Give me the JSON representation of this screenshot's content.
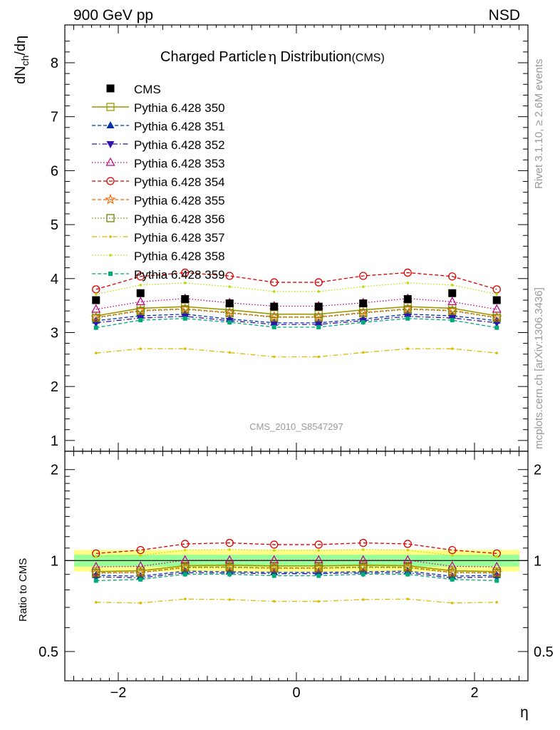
{
  "header": {
    "left": "900 GeV pp",
    "right": "NSD"
  },
  "side_labels": {
    "rivet": "Rivet 3.1.10, ≥ 2.6M events",
    "mcplots": "mcplots.cern.ch [arXiv:1306.3436]"
  },
  "chart_data": {
    "type": "line",
    "title_main": "Charged Particle",
    "title_eta": "η",
    "title_rest": " Distribution",
    "title_suffix": "(CMS)",
    "watermark": "CMS_2010_S8547297",
    "ylabel_main": {
      "d": "dN",
      "sub": "ch",
      "rest": "/dη"
    },
    "ylabel_ratio": "Ratio to CMS",
    "xlabel": "η",
    "xlim": [
      -2.6,
      2.6
    ],
    "ylim_main": [
      0.8,
      8.7
    ],
    "ylim_ratio": [
      0.4,
      2.3
    ],
    "ratio_log_scale": true,
    "x_ticks": [
      "−2",
      "0",
      "2"
    ],
    "x_tick_values": [
      -2,
      0,
      2
    ],
    "y_ticks_main": [
      "1",
      "2",
      "3",
      "4",
      "5",
      "6",
      "7",
      "8"
    ],
    "y_ticks_ratio": [
      "0.5",
      "1",
      "2"
    ],
    "x": [
      -2.25,
      -1.75,
      -1.25,
      -0.75,
      -0.25,
      0.25,
      0.75,
      1.25,
      1.75,
      2.25
    ],
    "data": {
      "name": "CMS",
      "color": "#000000",
      "values": [
        3.6,
        3.73,
        3.62,
        3.54,
        3.48,
        3.48,
        3.54,
        3.62,
        3.73,
        3.6
      ]
    },
    "series": [
      {
        "name": "Pythia 6.428 350",
        "color": "#999900",
        "marker": "open-square",
        "dash": "solid",
        "values": [
          3.31,
          3.45,
          3.48,
          3.42,
          3.34,
          3.34,
          3.42,
          3.48,
          3.45,
          3.31
        ]
      },
      {
        "name": "Pythia 6.428 351",
        "color": "#0033aa",
        "marker": "triangle-up",
        "dash": "dashed",
        "values": [
          3.22,
          3.31,
          3.34,
          3.25,
          3.18,
          3.18,
          3.25,
          3.34,
          3.31,
          3.22
        ]
      },
      {
        "name": "Pythia 6.428 352",
        "color": "#3311aa",
        "marker": "triangle-down",
        "dash": "dashdot",
        "values": [
          3.18,
          3.27,
          3.3,
          3.22,
          3.15,
          3.15,
          3.22,
          3.3,
          3.27,
          3.18
        ]
      },
      {
        "name": "Pythia 6.428 353",
        "color": "#bb0088",
        "marker": "open-triangle",
        "dash": "dotted",
        "values": [
          3.43,
          3.57,
          3.63,
          3.55,
          3.49,
          3.49,
          3.55,
          3.63,
          3.57,
          3.43
        ]
      },
      {
        "name": "Pythia 6.428 354",
        "color": "#dd0000",
        "marker": "open-circle",
        "dash": "dashed",
        "values": [
          3.8,
          4.04,
          4.11,
          4.05,
          3.93,
          3.93,
          4.05,
          4.11,
          4.04,
          3.8
        ]
      },
      {
        "name": "Pythia 6.428 355",
        "color": "#ee6600",
        "marker": "open-star",
        "dash": "dashed",
        "values": [
          3.28,
          3.41,
          3.44,
          3.37,
          3.29,
          3.29,
          3.37,
          3.44,
          3.41,
          3.28
        ]
      },
      {
        "name": "Pythia 6.428 356",
        "color": "#668800",
        "marker": "open-square",
        "dash": "dotted",
        "values": [
          3.27,
          3.4,
          3.43,
          3.36,
          3.28,
          3.28,
          3.36,
          3.43,
          3.4,
          3.27
        ]
      },
      {
        "name": "Pythia 6.428 357",
        "color": "#ddbb00",
        "marker": "dot",
        "dash": "dashdot",
        "values": [
          2.62,
          2.7,
          2.7,
          2.63,
          2.55,
          2.55,
          2.63,
          2.7,
          2.7,
          2.62
        ]
      },
      {
        "name": "Pythia 6.428 358",
        "color": "#bbdd00",
        "marker": "dot",
        "dash": "dotted",
        "values": [
          3.71,
          3.88,
          3.92,
          3.85,
          3.76,
          3.76,
          3.85,
          3.92,
          3.88,
          3.71
        ]
      },
      {
        "name": "Pythia 6.428 359",
        "color": "#00aa77",
        "marker": "filled-square",
        "dash": "dashed",
        "values": [
          3.09,
          3.23,
          3.26,
          3.19,
          3.1,
          3.1,
          3.19,
          3.26,
          3.23,
          3.09
        ]
      }
    ]
  }
}
